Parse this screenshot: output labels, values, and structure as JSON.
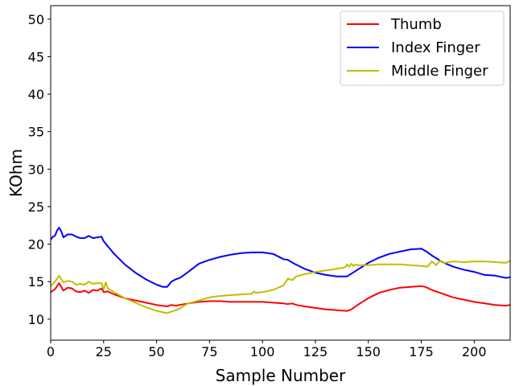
{
  "chart_data": {
    "type": "line",
    "title": "",
    "xlabel": "Sample Number",
    "ylabel": "KOhm",
    "xlim": [
      0,
      217
    ],
    "ylim": [
      7.2,
      51.8
    ],
    "xticks": [
      0,
      25,
      50,
      75,
      100,
      125,
      150,
      175,
      200
    ],
    "yticks": [
      10,
      15,
      20,
      25,
      30,
      35,
      40,
      45,
      50
    ],
    "grid": false,
    "legend_position": "top-right",
    "series": [
      {
        "name": "Thumb",
        "color": "#ff0000",
        "x": [
          0,
          2,
          4,
          6,
          8,
          10,
          12,
          14,
          16,
          18,
          20,
          22,
          24,
          25,
          27,
          30,
          35,
          40,
          45,
          50,
          55,
          57,
          59,
          61,
          63,
          65,
          70,
          75,
          80,
          85,
          90,
          95,
          100,
          105,
          110,
          112,
          114,
          116,
          120,
          125,
          130,
          135,
          140,
          142,
          145,
          150,
          155,
          160,
          165,
          170,
          175,
          177,
          180,
          185,
          190,
          195,
          200,
          205,
          210,
          215,
          217
        ],
        "y": [
          13.6,
          14.0,
          14.8,
          13.8,
          14.2,
          14.1,
          13.7,
          13.6,
          13.8,
          13.5,
          13.9,
          13.8,
          14.1,
          13.6,
          13.7,
          13.3,
          12.8,
          12.5,
          12.2,
          11.9,
          11.7,
          11.9,
          11.8,
          11.9,
          12.0,
          12.1,
          12.3,
          12.4,
          12.4,
          12.3,
          12.3,
          12.3,
          12.3,
          12.2,
          12.1,
          12.0,
          12.1,
          11.9,
          11.7,
          11.5,
          11.3,
          11.2,
          11.1,
          11.3,
          11.9,
          12.8,
          13.5,
          13.9,
          14.2,
          14.3,
          14.4,
          14.3,
          13.9,
          13.4,
          12.9,
          12.6,
          12.3,
          12.1,
          11.9,
          11.8,
          11.9
        ]
      },
      {
        "name": "Index Finger",
        "color": "#0000ff",
        "x": [
          0,
          1,
          2,
          3,
          4,
          5,
          6,
          8,
          10,
          12,
          14,
          16,
          18,
          20,
          22,
          24,
          25,
          27,
          30,
          35,
          40,
          45,
          50,
          53,
          55,
          57,
          59,
          61,
          63,
          65,
          70,
          75,
          80,
          85,
          90,
          95,
          100,
          105,
          110,
          112,
          115,
          120,
          125,
          130,
          135,
          140,
          145,
          150,
          155,
          160,
          165,
          170,
          175,
          177,
          180,
          185,
          190,
          195,
          200,
          205,
          210,
          215,
          217
        ],
        "y": [
          20.6,
          21.0,
          21.1,
          21.8,
          22.2,
          21.7,
          20.9,
          21.3,
          21.3,
          21.0,
          20.8,
          20.8,
          21.1,
          20.8,
          20.9,
          21.0,
          20.4,
          19.7,
          18.7,
          17.3,
          16.2,
          15.3,
          14.6,
          14.3,
          14.3,
          15.0,
          15.3,
          15.5,
          15.9,
          16.3,
          17.4,
          17.9,
          18.3,
          18.6,
          18.8,
          18.9,
          18.9,
          18.7,
          18.0,
          17.9,
          17.4,
          16.7,
          16.2,
          15.9,
          15.7,
          15.7,
          16.6,
          17.5,
          18.2,
          18.7,
          19.0,
          19.3,
          19.4,
          19.1,
          18.5,
          17.6,
          17.0,
          16.6,
          16.3,
          15.9,
          15.8,
          15.5,
          15.6
        ]
      },
      {
        "name": "Middle Finger",
        "color": "#bfbf00",
        "x": [
          0,
          2,
          4,
          6,
          8,
          10,
          12,
          14,
          16,
          18,
          20,
          22,
          24,
          25,
          26,
          27,
          30,
          35,
          40,
          45,
          50,
          55,
          57,
          59,
          61,
          63,
          65,
          70,
          75,
          80,
          85,
          90,
          95,
          96,
          97,
          100,
          105,
          110,
          112,
          114,
          116,
          120,
          125,
          130,
          135,
          139,
          140,
          141,
          142,
          143,
          144,
          145,
          150,
          155,
          160,
          165,
          170,
          175,
          178,
          180,
          182,
          184,
          186,
          190,
          195,
          200,
          205,
          210,
          215,
          217
        ],
        "y": [
          14.4,
          15.0,
          15.8,
          14.9,
          15.1,
          15.0,
          14.6,
          14.7,
          14.6,
          15.0,
          14.7,
          14.8,
          14.8,
          14.0,
          14.9,
          14.1,
          13.6,
          12.8,
          12.2,
          11.6,
          11.1,
          10.8,
          11.0,
          11.2,
          11.4,
          11.8,
          12.1,
          12.5,
          12.9,
          13.1,
          13.2,
          13.3,
          13.4,
          13.7,
          13.5,
          13.6,
          13.9,
          14.5,
          15.4,
          15.2,
          15.7,
          16.0,
          16.3,
          16.5,
          16.7,
          16.9,
          17.3,
          17.0,
          17.4,
          17.1,
          17.3,
          17.2,
          17.2,
          17.3,
          17.3,
          17.3,
          17.2,
          17.1,
          17.0,
          17.7,
          17.2,
          17.8,
          17.5,
          17.7,
          17.6,
          17.7,
          17.7,
          17.6,
          17.5,
          17.8
        ]
      }
    ]
  }
}
